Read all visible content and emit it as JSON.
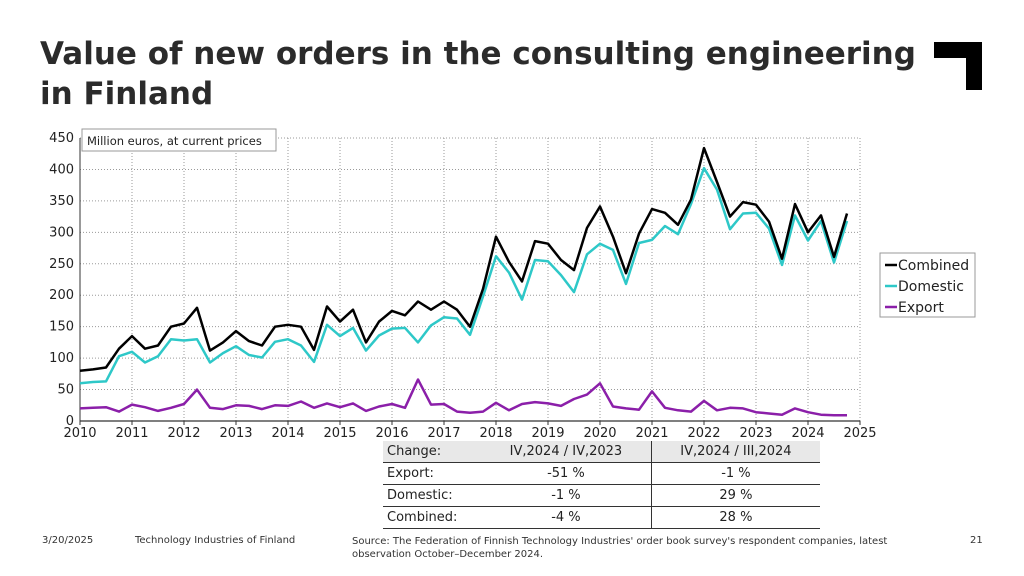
{
  "slide": {
    "title": "Value of new orders in the consulting engineering in Finland",
    "footer_date": "3/20/2025",
    "footer_org": "Technology Industries of Finland",
    "footer_source": "Source: The Federation of Finnish Technology Industries' order book survey's respondent companies, latest observation October–December 2024.",
    "page_number": "21"
  },
  "chart_data": {
    "type": "line",
    "unit_label": "Million euros, at current prices",
    "x_start": 2010,
    "x_step": 0.25,
    "xlim": [
      2010,
      2025
    ],
    "x_ticks": [
      "2010",
      "2011",
      "2012",
      "2013",
      "2014",
      "2015",
      "2016",
      "2017",
      "2018",
      "2019",
      "2020",
      "2021",
      "2022",
      "2023",
      "2024",
      "2025"
    ],
    "ylim": [
      0,
      450
    ],
    "y_ticks": [
      "0",
      "50",
      "100",
      "150",
      "200",
      "250",
      "300",
      "350",
      "400",
      "450"
    ],
    "grid": true,
    "legend_position": "right",
    "series": [
      {
        "name": "Combined",
        "color": "#000000",
        "values": [
          80,
          82,
          85,
          115,
          135,
          115,
          120,
          150,
          155,
          180,
          112,
          125,
          143,
          127,
          120,
          150,
          153,
          150,
          113,
          182,
          158,
          177,
          125,
          158,
          175,
          168,
          190,
          177,
          190,
          177,
          150,
          210,
          293,
          253,
          222,
          286,
          282,
          256,
          240,
          307,
          341,
          293,
          235,
          298,
          337,
          331,
          312,
          352,
          434,
          380,
          325,
          348,
          344,
          317,
          258,
          345,
          300,
          327,
          261,
          330
        ]
      },
      {
        "name": "Domestic",
        "color": "#2ec8c8",
        "values": [
          60,
          62,
          63,
          103,
          110,
          93,
          103,
          130,
          128,
          130,
          93,
          108,
          119,
          105,
          101,
          126,
          130,
          120,
          94,
          153,
          135,
          148,
          112,
          136,
          147,
          148,
          125,
          152,
          165,
          163,
          137,
          198,
          262,
          236,
          193,
          256,
          254,
          232,
          205,
          265,
          282,
          272,
          218,
          283,
          288,
          310,
          297,
          345,
          402,
          368,
          305,
          330,
          331,
          306,
          248,
          327,
          287,
          318,
          252,
          318
        ]
      },
      {
        "name": "Export",
        "color": "#8b1fa9",
        "values": [
          20,
          21,
          22,
          15,
          26,
          22,
          16,
          21,
          27,
          50,
          21,
          19,
          25,
          24,
          19,
          25,
          24,
          31,
          21,
          28,
          22,
          28,
          16,
          23,
          27,
          21,
          66,
          26,
          27,
          15,
          13,
          15,
          29,
          17,
          27,
          30,
          28,
          24,
          35,
          42,
          60,
          23,
          20,
          18,
          47,
          21,
          17,
          15,
          32,
          17,
          21,
          20,
          14,
          12,
          10,
          20,
          14,
          10,
          9,
          9
        ]
      }
    ],
    "table": {
      "header": [
        "Change:",
        "IV,2024 / IV,2023",
        "IV,2024 / III,2024"
      ],
      "rows": [
        [
          "Export:",
          "-51 %",
          "-1 %"
        ],
        [
          "Domestic:",
          "-1 %",
          "29 %"
        ],
        [
          "Combined:",
          "-4 %",
          "28 %"
        ]
      ]
    }
  }
}
